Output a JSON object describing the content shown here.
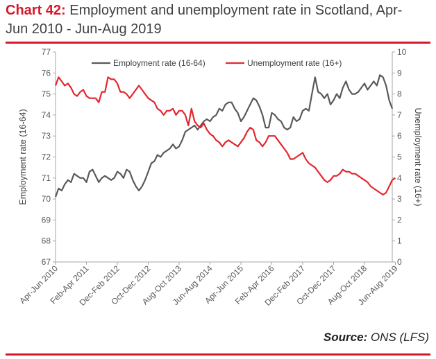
{
  "header": {
    "title_prefix": "Chart 42:",
    "title_line1": " Employment and unemployment rate in Scotland, Apr-",
    "title_line2": "Jun 2010 - Jun-Aug 2019"
  },
  "source": {
    "label": "Source:",
    "value": " ONS (LFS)"
  },
  "colors": {
    "accent": "#d7182a",
    "employment": "#595959",
    "unemployment": "#e3262d"
  },
  "chart_data": {
    "type": "line",
    "ylabel": "Employment rate (16-64)",
    "y2label": "Unemployment rate (16+)",
    "ylim": [
      67,
      77
    ],
    "y2lim": [
      0,
      10
    ],
    "yticks": [
      67,
      68,
      69,
      70,
      71,
      72,
      73,
      74,
      75,
      76,
      77
    ],
    "y2ticks": [
      0,
      1,
      2,
      3,
      4,
      5,
      6,
      7,
      8,
      9,
      10
    ],
    "grid": false,
    "legend_position": "top",
    "x_tick_labels": [
      "Apr-Jun 2010",
      "Feb-Apr 2011",
      "Dec-Feb 2012",
      "Oct-Dec 2012",
      "Aug-Oct 2013",
      "Jun-Aug 2014",
      "Apr-Jun 2015",
      "Feb-Apr 2016",
      "Dec-Feb 2017",
      "Oct-Dec 2017",
      "Aug-Oct 2018",
      "Jun-Aug 2019"
    ],
    "x_tick_positions": [
      0,
      10,
      20,
      30,
      40,
      50,
      60,
      70,
      80,
      90,
      100,
      110
    ],
    "series": [
      {
        "name": "Employment rate (16-64)",
        "axis": "left",
        "values": [
          70.1,
          70.5,
          70.4,
          70.7,
          70.9,
          70.8,
          71.2,
          71.1,
          71.0,
          71.0,
          70.8,
          71.3,
          71.4,
          71.1,
          70.8,
          71.0,
          71.1,
          71.0,
          70.9,
          71.0,
          71.3,
          71.2,
          71.0,
          71.4,
          71.3,
          70.9,
          70.6,
          70.4,
          70.6,
          70.9,
          71.3,
          71.7,
          71.8,
          72.1,
          72.0,
          72.2,
          72.3,
          72.4,
          72.6,
          72.4,
          72.5,
          72.8,
          73.2,
          73.3,
          73.4,
          73.5,
          73.3,
          73.5,
          73.7,
          73.8,
          73.7,
          73.9,
          74.0,
          74.3,
          74.2,
          74.5,
          74.6,
          74.6,
          74.3,
          74.1,
          73.7,
          73.9,
          74.2,
          74.5,
          74.8,
          74.7,
          74.4,
          74.0,
          73.4,
          73.4,
          74.1,
          74.0,
          73.8,
          73.7,
          73.4,
          73.3,
          73.4,
          73.9,
          73.7,
          73.8,
          74.2,
          74.3,
          74.2,
          75.0,
          75.8,
          75.1,
          75.0,
          74.8,
          75.0,
          74.5,
          74.7,
          75.0,
          74.8,
          75.3,
          75.6,
          75.2,
          75.0,
          75.0,
          75.1,
          75.3,
          75.5,
          75.2,
          75.4,
          75.6,
          75.4,
          75.9,
          75.8,
          75.4,
          74.7,
          74.3
        ],
        "color": "#595959"
      },
      {
        "name": "Unemployment rate (16+)",
        "axis": "right",
        "values": [
          8.4,
          8.8,
          8.6,
          8.4,
          8.5,
          8.3,
          8.0,
          7.9,
          8.1,
          8.2,
          7.9,
          7.8,
          7.8,
          7.8,
          7.6,
          8.1,
          8.1,
          8.8,
          8.7,
          8.7,
          8.5,
          8.1,
          8.1,
          8.0,
          7.8,
          8.0,
          8.2,
          8.4,
          8.2,
          8.0,
          7.8,
          7.7,
          7.6,
          7.3,
          7.2,
          7.0,
          7.2,
          7.2,
          7.3,
          7.0,
          7.2,
          7.2,
          7.0,
          6.5,
          7.3,
          6.7,
          6.5,
          6.4,
          6.6,
          6.3,
          6.1,
          6.0,
          5.8,
          5.7,
          5.5,
          5.7,
          5.8,
          5.7,
          5.6,
          5.5,
          5.7,
          5.9,
          6.2,
          6.4,
          6.3,
          5.8,
          5.7,
          5.5,
          5.7,
          6.0,
          6.0,
          6.0,
          5.8,
          5.6,
          5.4,
          5.2,
          4.9,
          4.9,
          5.0,
          5.1,
          5.2,
          4.9,
          4.7,
          4.6,
          4.5,
          4.3,
          4.1,
          3.9,
          3.8,
          3.9,
          4.1,
          4.1,
          4.2,
          4.4,
          4.3,
          4.3,
          4.2,
          4.2,
          4.1,
          4.0,
          3.9,
          3.8,
          3.6,
          3.5,
          3.4,
          3.3,
          3.2,
          3.3,
          3.6,
          3.9,
          4.0
        ],
        "color": "#e3262d"
      }
    ]
  }
}
